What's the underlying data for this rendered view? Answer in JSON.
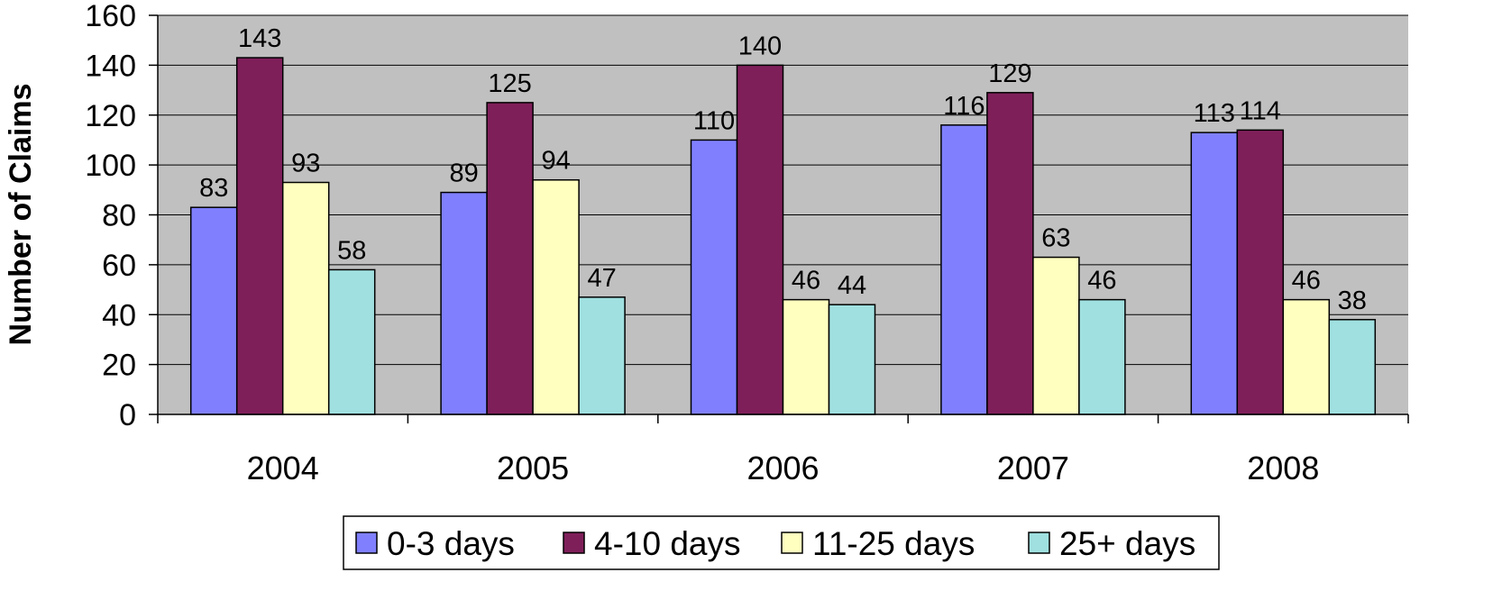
{
  "chart_data": {
    "type": "bar",
    "categories": [
      "2004",
      "2005",
      "2006",
      "2007",
      "2008"
    ],
    "series": [
      {
        "name": "0-3 days",
        "color": "#8080ff",
        "values": [
          83,
          89,
          110,
          116,
          113
        ]
      },
      {
        "name": "4-10 days",
        "color": "#7f1f5a",
        "values": [
          143,
          125,
          140,
          129,
          114
        ]
      },
      {
        "name": "11-25 days",
        "color": "#ffffc0",
        "values": [
          93,
          94,
          46,
          63,
          46
        ]
      },
      {
        "name": "25+ days",
        "color": "#a0e0e0",
        "values": [
          58,
          47,
          44,
          46,
          38
        ]
      }
    ],
    "ylabel": "Number of Claims",
    "ylim": [
      0,
      160
    ],
    "yticks": [
      0,
      20,
      40,
      60,
      80,
      100,
      120,
      140,
      160
    ],
    "grid": true,
    "plot_background": "#c0c0c0",
    "legend": "bottom"
  }
}
